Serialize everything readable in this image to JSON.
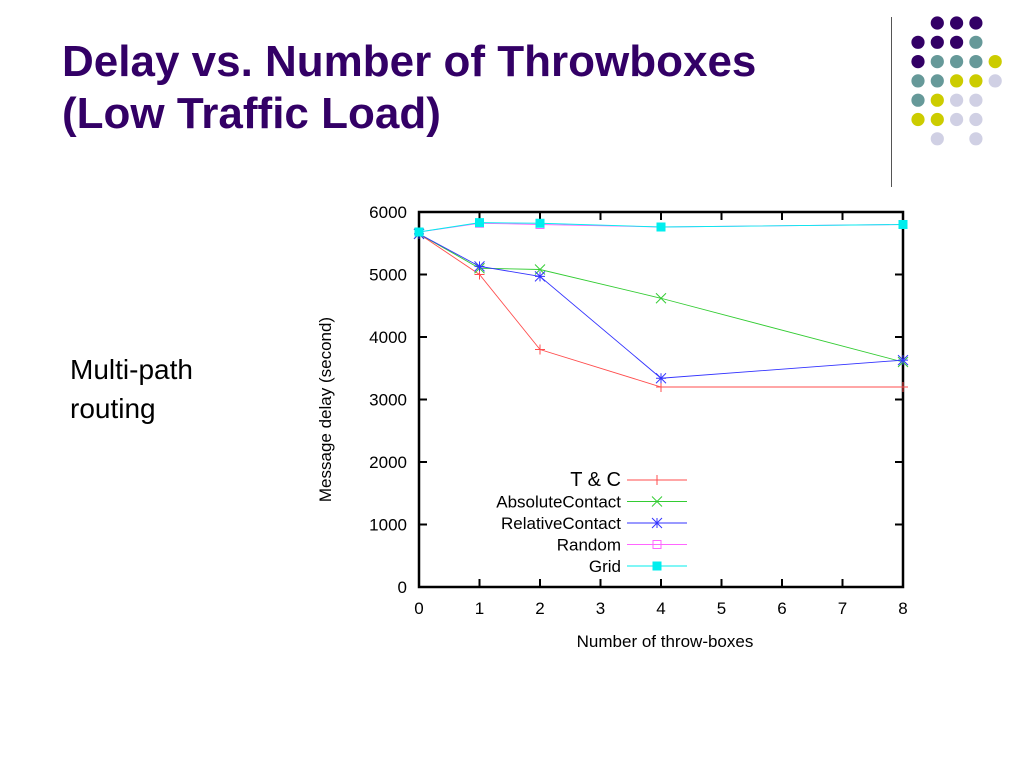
{
  "slide": {
    "title_line1": "Delay vs. Number of Throwboxes",
    "title_line2": "(Low Traffic Load)",
    "bullet_line1": "Multi-path",
    "bullet_line2": "routing"
  },
  "colors": {
    "title": "#330066",
    "dot_purple": "#330066",
    "dot_teal": "#669999",
    "dot_yellow": "#cccc00",
    "dot_lavender": "#d0d0e4"
  },
  "chart_data": {
    "type": "line",
    "title": "",
    "xlabel": "Number of throw-boxes",
    "ylabel": "Message delay (second)",
    "xlim": [
      0,
      8
    ],
    "ylim": [
      0,
      6000
    ],
    "xticks": [
      "0",
      "1",
      "2",
      "3",
      "4",
      "5",
      "6",
      "7",
      "8"
    ],
    "yticks": [
      "0",
      "1000",
      "2000",
      "3000",
      "4000",
      "5000",
      "6000"
    ],
    "grid": false,
    "legend_position": "bottom-center",
    "series": [
      {
        "name": "T & C",
        "color": "#ff4d4d",
        "marker": "plus",
        "x": [
          0,
          1,
          2,
          4,
          8
        ],
        "y": [
          5650,
          5000,
          3800,
          3200,
          3200
        ]
      },
      {
        "name": "AbsoluteContact",
        "color": "#33cc33",
        "marker": "cross",
        "x": [
          0,
          1,
          2,
          4,
          8
        ],
        "y": [
          5650,
          5100,
          5080,
          4620,
          3600
        ]
      },
      {
        "name": "RelativeContact",
        "color": "#3333ff",
        "marker": "star",
        "x": [
          0,
          1,
          2,
          4,
          8
        ],
        "y": [
          5650,
          5130,
          4970,
          3340,
          3630
        ]
      },
      {
        "name": "Random",
        "color": "#ff66ff",
        "marker": "open-square",
        "x": [
          0,
          1,
          2,
          4,
          8
        ],
        "y": [
          5680,
          5820,
          5800,
          5760,
          5800
        ]
      },
      {
        "name": "Grid",
        "color": "#00eeee",
        "marker": "filled-square",
        "x": [
          0,
          1,
          2,
          4,
          8
        ],
        "y": [
          5680,
          5830,
          5820,
          5760,
          5800
        ]
      }
    ]
  }
}
